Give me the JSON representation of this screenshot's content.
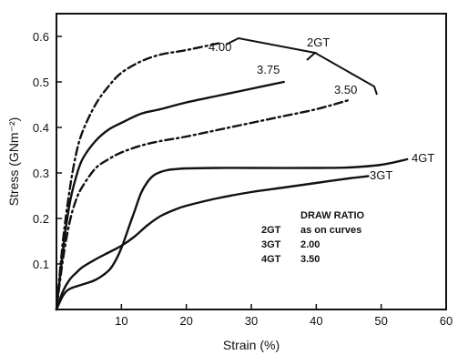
{
  "chart_data": {
    "type": "line",
    "title": "",
    "xlabel": "Strain (%)",
    "ylabel": "Stress (GNm⁻²)",
    "xlim": [
      0,
      60
    ],
    "ylim": [
      0,
      0.65
    ],
    "grid": false,
    "xticks": [
      0,
      10,
      20,
      30,
      40,
      50,
      60
    ],
    "xtick_labels": [
      "",
      "10",
      "20",
      "30",
      "40",
      "50",
      "60"
    ],
    "yticks": [
      0.1,
      0.2,
      0.3,
      0.4,
      0.5,
      0.6
    ],
    "ytick_labels": [
      "0.1",
      "0.2",
      "0.3",
      "0.4",
      "0.5",
      "0.6"
    ],
    "series": [
      {
        "name": "2GT 4.00",
        "style": "dashdot",
        "x": [
          0,
          1,
          2,
          3,
          4,
          6,
          8,
          10,
          13,
          16,
          20,
          25
        ],
        "y": [
          0,
          0.15,
          0.26,
          0.34,
          0.39,
          0.45,
          0.49,
          0.52,
          0.545,
          0.56,
          0.57,
          0.585
        ]
      },
      {
        "name": "2GT 3.75",
        "style": "solid",
        "x": [
          0,
          1,
          2,
          3,
          4,
          6,
          8,
          10,
          13,
          16,
          20,
          25,
          30,
          35
        ],
        "y": [
          0,
          0.13,
          0.23,
          0.29,
          0.33,
          0.37,
          0.395,
          0.41,
          0.43,
          0.44,
          0.455,
          0.47,
          0.485,
          0.5
        ]
      },
      {
        "name": "2GT 3.50",
        "style": "dashdot",
        "x": [
          0,
          1,
          2,
          3,
          4,
          6,
          8,
          10,
          13,
          16,
          20,
          25,
          30,
          35,
          40,
          45
        ],
        "y": [
          0,
          0.11,
          0.19,
          0.24,
          0.27,
          0.31,
          0.33,
          0.345,
          0.36,
          0.37,
          0.38,
          0.395,
          0.41,
          0.425,
          0.44,
          0.46
        ]
      },
      {
        "name": "3GT 2.00",
        "style": "solid",
        "x": [
          0,
          1,
          2,
          3,
          4,
          6,
          8,
          10,
          12,
          14,
          16,
          18,
          20,
          25,
          30,
          35,
          40,
          45,
          48
        ],
        "y": [
          0,
          0.04,
          0.065,
          0.08,
          0.093,
          0.11,
          0.125,
          0.14,
          0.16,
          0.185,
          0.205,
          0.218,
          0.228,
          0.245,
          0.258,
          0.268,
          0.278,
          0.288,
          0.293
        ]
      },
      {
        "name": "4GT 3.50",
        "style": "solid",
        "x": [
          0,
          1,
          2,
          4,
          6,
          8,
          9,
          10,
          11,
          12,
          13,
          14,
          15,
          16,
          17,
          18,
          20,
          25,
          30,
          40,
          45,
          50,
          54
        ],
        "y": [
          0,
          0.03,
          0.045,
          0.055,
          0.065,
          0.085,
          0.105,
          0.135,
          0.175,
          0.215,
          0.255,
          0.28,
          0.295,
          0.302,
          0.306,
          0.308,
          0.31,
          0.311,
          0.311,
          0.311,
          0.312,
          0.318,
          0.33
        ]
      }
    ],
    "annotations": {
      "group_label": "2GT",
      "curve_labels": [
        "4.00",
        "3.75",
        "3.50"
      ],
      "end_labels": [
        "4GT",
        "3GT"
      ]
    },
    "legend_table": {
      "title": "DRAW RATIO",
      "rows": [
        {
          "name": "2GT",
          "value": "as on curves"
        },
        {
          "name": "3GT",
          "value": "2.00"
        },
        {
          "name": "4GT",
          "value": "3.50"
        }
      ]
    }
  }
}
